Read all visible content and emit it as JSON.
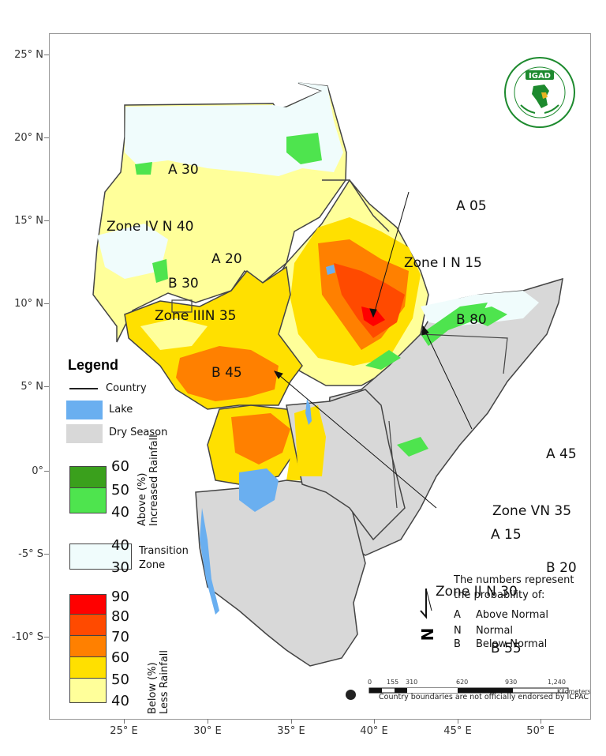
{
  "lat_labels": [
    "25° N",
    "20° N",
    "15° N",
    "10° N",
    "5° N",
    "0°",
    "-5° S",
    "-10° S"
  ],
  "lon_labels": [
    "25° E",
    "30° E",
    "35° E",
    "40° E",
    "45° E",
    "50° E"
  ],
  "logo": {
    "name": "IGAD",
    "ring_text": "INTERGOVERNMENTAL AUTHORITY ON DEVELOPMENT · AUTORITE INTERGOUVERNEMENTALE POUR LE DEVELOPPEMENT",
    "color": "#1d8a2e",
    "accent": "#e6b422"
  },
  "zones": {
    "zone4": {
      "a": "A 30",
      "n": "Zone IV N 40",
      "b": "B 30"
    },
    "zone3": {
      "a": "A 20",
      "n": "Zone IIIN 35",
      "b": "B 45"
    },
    "zone1": {
      "a": "A 05",
      "n": "Zone I N 15",
      "b": "B 80"
    },
    "zone5": {
      "a": "A 45",
      "n": "Zone VN 35",
      "b": "B 20"
    },
    "zone2": {
      "a": "A 15",
      "n": "Zone II N 30",
      "b": "B 55"
    }
  },
  "legend": {
    "title": "Legend",
    "country": "Country",
    "lake": "Lake",
    "dry": "Dry Season",
    "above_nums": [
      "60",
      "50",
      "40"
    ],
    "above_label_1": "Above (%)",
    "above_label_2": "Increased Rainfall",
    "transition_nums": [
      "40",
      "30"
    ],
    "transition_label_1": "Transition",
    "transition_label_2": "Zone",
    "below_nums": [
      "90",
      "80",
      "70",
      "60",
      "50",
      "40"
    ],
    "below_label_1": "Below (%)",
    "below_label_2": "Less Rainfall",
    "colors": {
      "above_60": "#3aa01c",
      "above_50": "#4ee44e",
      "transition": "#f0fcfc",
      "below_90": "#ff0000",
      "below_80": "#ff4a00",
      "below_70": "#ff8000",
      "below_60": "#ffe000",
      "below_50": "#ffff9a",
      "lake": "#6aaff0",
      "dry": "#d8d8d8"
    }
  },
  "note": {
    "line1": "The numbers represent",
    "line2": "the probability of:",
    "items": [
      {
        "k": "A",
        "v": "Above Normal"
      },
      {
        "k": "N",
        "v": "Normal"
      },
      {
        "k": "B",
        "v": "Below Normal"
      }
    ]
  },
  "scale": {
    "ticks": [
      "0",
      "155",
      "310",
      "620",
      "930",
      "1,240"
    ],
    "unit": "Kilometers"
  },
  "disclaimer": "Country boundaries are not officially endorsed by ICPAC"
}
